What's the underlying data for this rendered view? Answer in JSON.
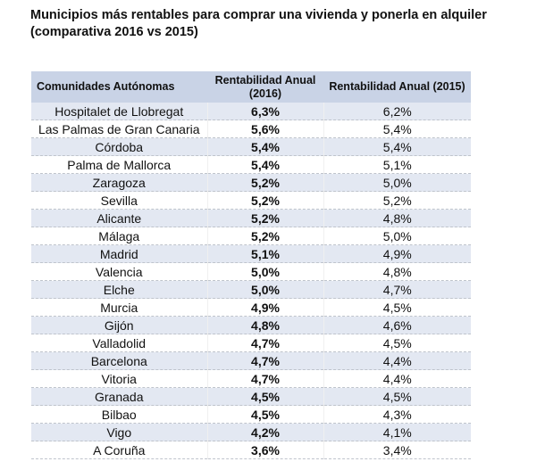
{
  "title": "Municipios más rentables para comprar una vivienda y ponerla en alquiler (comparativa 2016 vs 2015)",
  "table": {
    "headers": [
      "Comunidades Autónomas",
      "Rentabilidad Anual (2016)",
      "Rentabilidad Anual (2015)"
    ],
    "rows": [
      [
        "Hospitalet de Llobregat",
        "6,3%",
        "6,2%"
      ],
      [
        "Las Palmas de Gran Canaria",
        "5,6%",
        "5,4%"
      ],
      [
        "Córdoba",
        "5,4%",
        "5,4%"
      ],
      [
        "Palma de Mallorca",
        "5,4%",
        "5,1%"
      ],
      [
        "Zaragoza",
        "5,2%",
        "5,0%"
      ],
      [
        "Sevilla",
        "5,2%",
        "5,2%"
      ],
      [
        "Alicante",
        "5,2%",
        "4,8%"
      ],
      [
        "Málaga",
        "5,2%",
        "5,0%"
      ],
      [
        "Madrid",
        "5,1%",
        "4,9%"
      ],
      [
        "Valencia",
        "5,0%",
        "4,8%"
      ],
      [
        "Elche",
        "5,0%",
        "4,7%"
      ],
      [
        "Murcia",
        "4,9%",
        "4,5%"
      ],
      [
        "Gijón",
        "4,8%",
        "4,6%"
      ],
      [
        "Valladolid",
        "4,7%",
        "4,5%"
      ],
      [
        "Barcelona",
        "4,7%",
        "4,4%"
      ],
      [
        "Vitoria",
        "4,7%",
        "4,4%"
      ],
      [
        "Granada",
        "4,5%",
        "4,5%"
      ],
      [
        "Bilbao",
        "4,5%",
        "4,3%"
      ],
      [
        "Vigo",
        "4,2%",
        "4,1%"
      ],
      [
        "A Coruña",
        "3,6%",
        "3,4%"
      ]
    ]
  },
  "colors": {
    "header_bg": "#c9d3e6",
    "stripe_bg": "#e3e8f2"
  }
}
